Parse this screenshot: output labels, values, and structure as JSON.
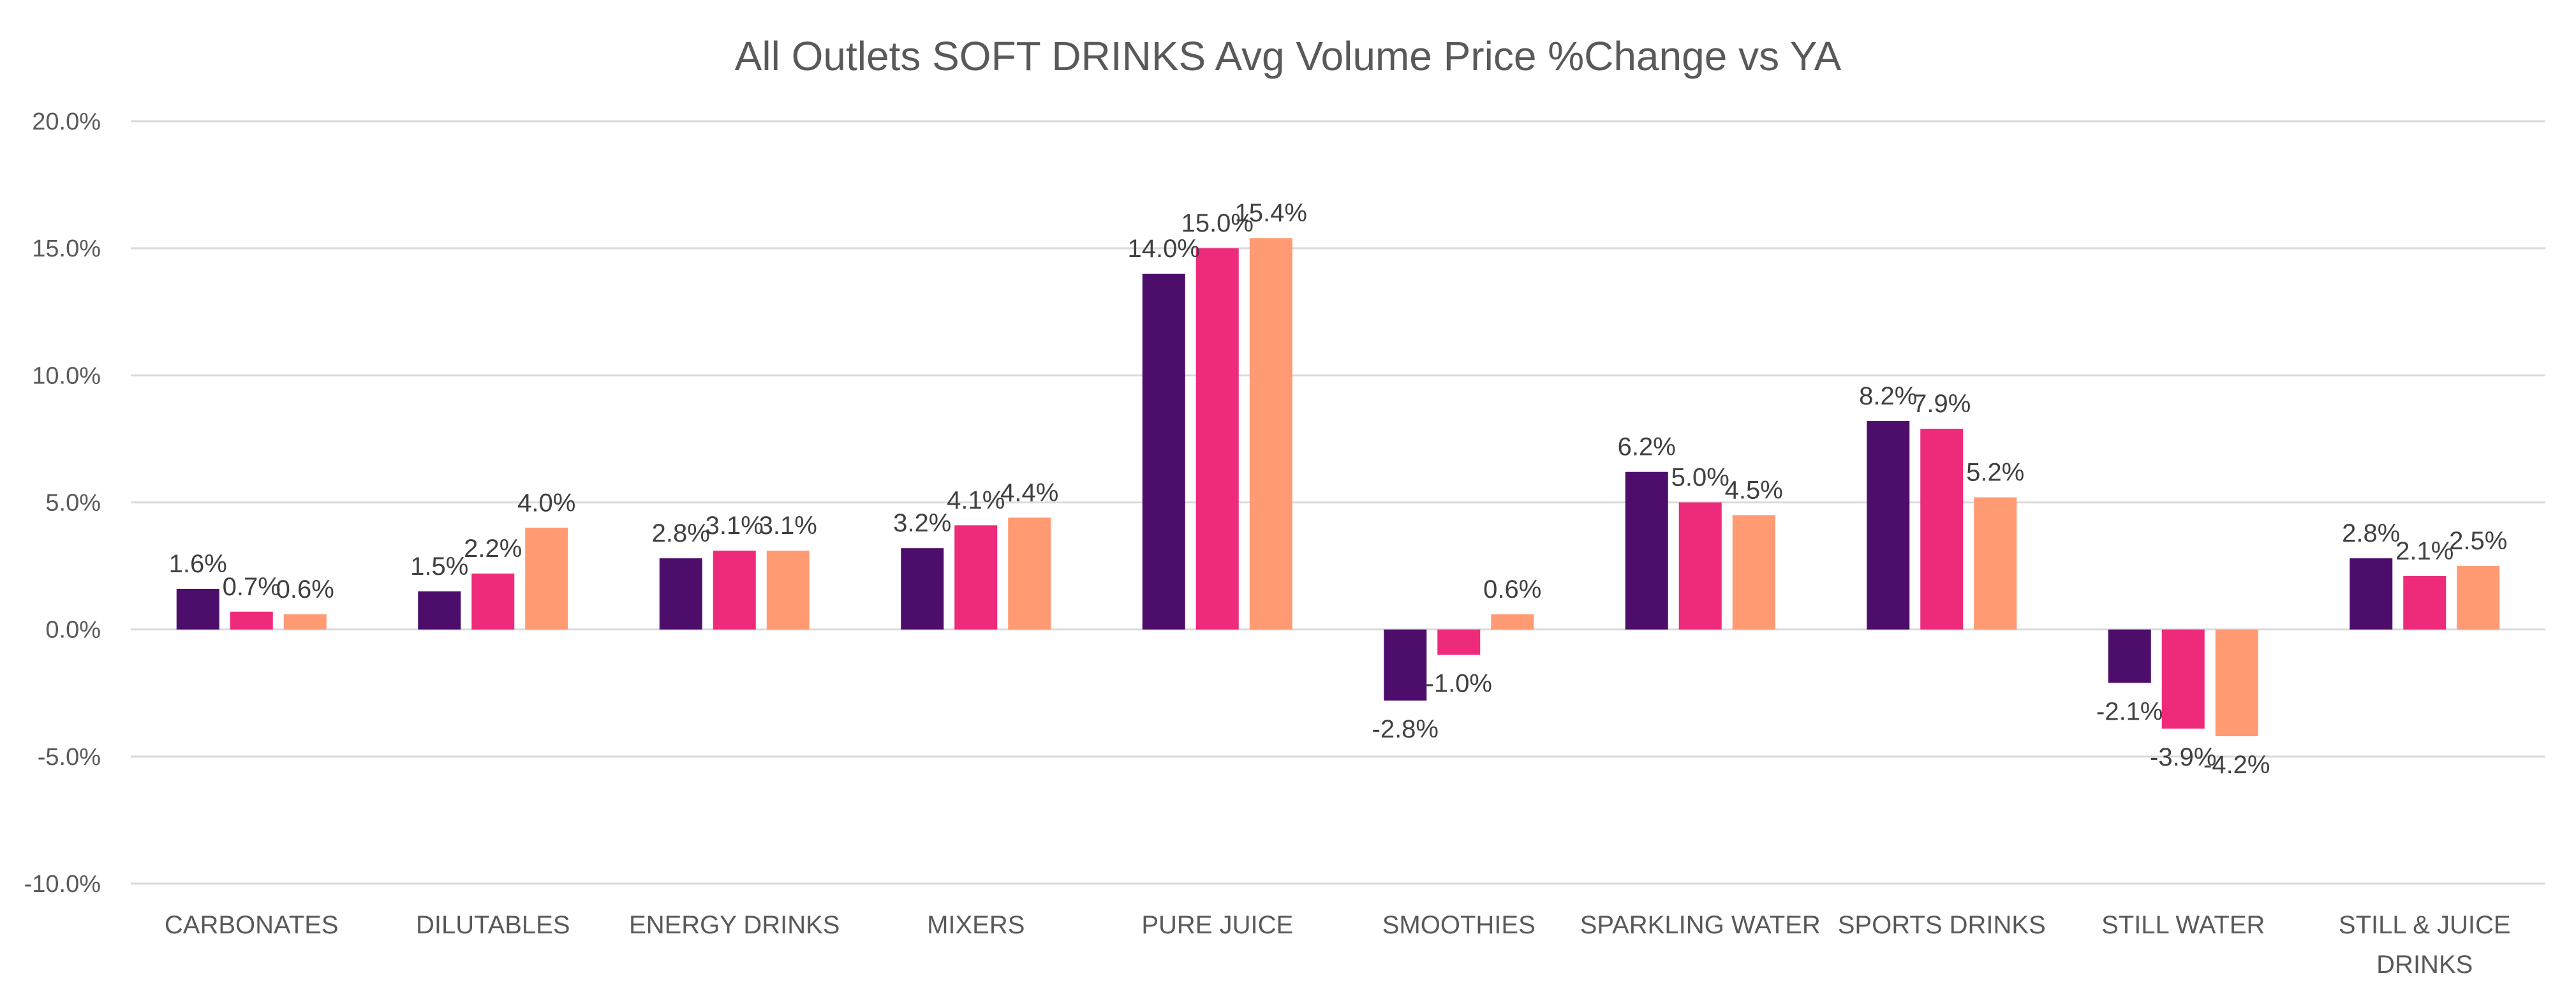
{
  "chart_data": {
    "type": "bar",
    "title": "All Outlets SOFT DRINKS Avg Volume Price %Change vs YA",
    "xlabel": "",
    "ylabel": "",
    "ylim": [
      -10,
      20
    ],
    "yticks": [
      20,
      15,
      10,
      5,
      0,
      -5,
      -10
    ],
    "ytick_labels": [
      "20.0%",
      "15.0%",
      "10.0%",
      "5.0%",
      "0.0%",
      "-5.0%",
      "-10.0%"
    ],
    "grid": true,
    "legend": "none",
    "categories": [
      [
        "CARBONATES"
      ],
      [
        "DILUTABLES"
      ],
      [
        "ENERGY DRINKS"
      ],
      [
        "MIXERS"
      ],
      [
        "PURE JUICE"
      ],
      [
        "SMOOTHIES"
      ],
      [
        "SPARKLING WATER"
      ],
      [
        "SPORTS DRINKS"
      ],
      [
        "STILL WATER"
      ],
      [
        "STILL & JUICE",
        "DRINKS"
      ]
    ],
    "series": [
      {
        "color": "#4d0d6b",
        "values": [
          1.6,
          1.5,
          2.8,
          3.2,
          14.0,
          -2.8,
          6.2,
          8.2,
          -2.1,
          2.8
        ],
        "labels": [
          "1.6%",
          "1.5%",
          "2.8%",
          "3.2%",
          "14.0%",
          "-2.8%",
          "6.2%",
          "8.2%",
          "-2.1%",
          "2.8%"
        ]
      },
      {
        "color": "#ee2a7b",
        "values": [
          0.7,
          2.2,
          3.1,
          4.1,
          15.0,
          -1.0,
          5.0,
          7.9,
          -3.9,
          2.1
        ],
        "labels": [
          "0.7%",
          "2.2%",
          "3.1%",
          "4.1%",
          "15.0%",
          "-1.0%",
          "5.0%",
          "7.9%",
          "-3.9%",
          "2.1%"
        ]
      },
      {
        "color": "#ff9a72",
        "values": [
          0.6,
          4.0,
          3.1,
          4.4,
          15.4,
          0.6,
          4.5,
          5.2,
          -4.2,
          2.5
        ],
        "labels": [
          "0.6%",
          "4.0%",
          "3.1%",
          "4.4%",
          "15.4%",
          "0.6%",
          "4.5%",
          "5.2%",
          "-4.2%",
          "2.5%"
        ]
      }
    ]
  }
}
